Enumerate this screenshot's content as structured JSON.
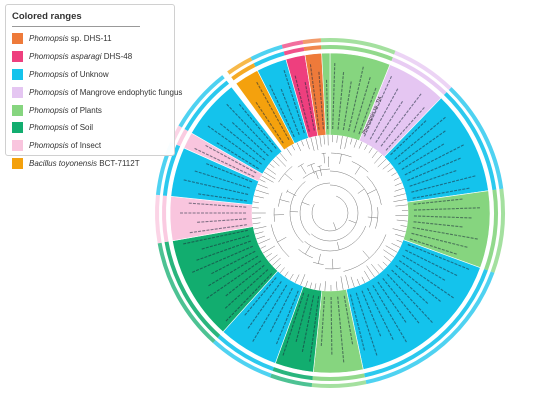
{
  "legend": {
    "title": "Colored ranges",
    "items": [
      {
        "genus": "Phomopsis",
        "rest": " sp. DHS-11",
        "color": "#ee7a3a"
      },
      {
        "genus": "Phomopsis asparagi",
        "rest": " DHS-48",
        "color": "#ee3f7e"
      },
      {
        "genus": "Phomopsis",
        "rest": " of Unknow",
        "color": "#14c3ec"
      },
      {
        "genus": "Phomopsis",
        "rest": " of Mangrove endophytic fungus",
        "color": "#e5c6f2"
      },
      {
        "genus": "Phomopsis",
        "rest": " of Plants",
        "color": "#86d57f"
      },
      {
        "genus": "Phomopsis",
        "rest": " of Soil",
        "color": "#12ad6f"
      },
      {
        "genus": "Phomopsis",
        "rest": " of Insect",
        "color": "#f9c5de"
      },
      {
        "genus": "Bacillus toyonensis",
        "rest": " BCT-7112T",
        "color": "#f4a10d"
      }
    ]
  },
  "tree": {
    "layout": "circular",
    "outer_annotation_rings": 2,
    "sectors": [
      {
        "group": "Phomopsis of Plants",
        "start": 0,
        "end": 22,
        "leaves": 6
      },
      {
        "group": "Phomopsis of Mangrove endophytic fungus",
        "start": 22,
        "end": 44,
        "leaves": 5
      },
      {
        "group": "Phomopsis of Unknow",
        "start": 44,
        "end": 82,
        "leaves": 9
      },
      {
        "group": "Phomopsis of Plants",
        "start": 82,
        "end": 110,
        "leaves": 7
      },
      {
        "group": "Phomopsis of Unknow",
        "start": 110,
        "end": 168,
        "leaves": 14
      },
      {
        "group": "Phomopsis of Plants",
        "start": 168,
        "end": 186,
        "leaves": 4
      },
      {
        "group": "Phomopsis of Soil",
        "start": 186,
        "end": 200,
        "leaves": 4
      },
      {
        "group": "Phomopsis of Unknow",
        "start": 200,
        "end": 222,
        "leaves": 5
      },
      {
        "group": "Phomopsis of Soil",
        "start": 222,
        "end": 260,
        "leaves": 10
      },
      {
        "group": "Phomopsis of Insect",
        "start": 260,
        "end": 276,
        "leaves": 4
      },
      {
        "group": "Phomopsis of Unknow",
        "start": 276,
        "end": 294,
        "leaves": 4
      },
      {
        "group": "Phomopsis of Insect",
        "start": 294,
        "end": 300,
        "leaves": 2
      },
      {
        "group": "Phomopsis of Unknow",
        "start": 300,
        "end": 322,
        "leaves": 6
      },
      {
        "group": "Bacillus toyonensis BCT-7112T",
        "start": 324,
        "end": 333,
        "leaves": 2
      },
      {
        "group": "Phomopsis of Unknow",
        "start": 333,
        "end": 344,
        "leaves": 3
      },
      {
        "group": "Phomopsis asparagi DHS-48",
        "start": 344,
        "end": 351,
        "leaves": 2
      },
      {
        "group": "Phomopsis sp. DHS-11",
        "start": 351,
        "end": 357,
        "leaves": 2
      },
      {
        "group": "Phomopsis of Plants",
        "start": 357,
        "end": 360,
        "leaves": 1
      }
    ],
    "leaf_labels": [
      "Phomopsis sp. TJ4"
    ]
  }
}
